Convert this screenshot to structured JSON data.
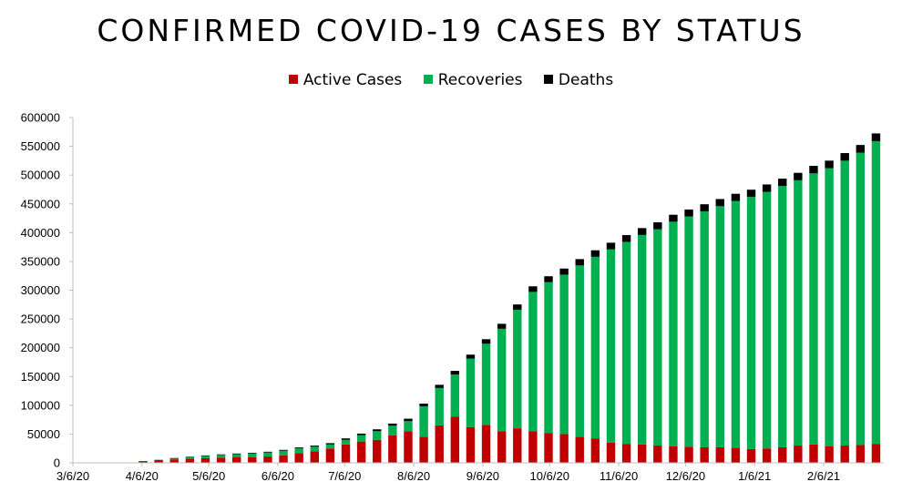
{
  "chart_data": {
    "type": "bar",
    "stacked": true,
    "title": "CONFIRMED COVID-19 CASES BY STATUS",
    "xlabel": "",
    "ylabel": "",
    "ylim": [
      0,
      600000
    ],
    "yticks": [
      "0",
      "50000",
      "100000",
      "150000",
      "200000",
      "250000",
      "300000",
      "350000",
      "400000",
      "450000",
      "500000",
      "550000",
      "600000"
    ],
    "xticks": [
      "3/6/20",
      "4/6/20",
      "5/6/20",
      "6/6/20",
      "7/6/20",
      "8/6/20",
      "9/6/20",
      "10/6/20",
      "11/6/20",
      "12/6/20",
      "1/6/21",
      "2/6/21"
    ],
    "legend_position": "top-center",
    "grid": false,
    "colors": {
      "active": "#c00000",
      "recoveries": "#00b050",
      "deaths": "#000000"
    },
    "categories": [
      "3/6/20",
      "3/13/20",
      "3/20/20",
      "3/27/20",
      "4/3/20",
      "4/10/20",
      "4/17/20",
      "4/24/20",
      "5/1/20",
      "5/8/20",
      "5/15/20",
      "5/22/20",
      "5/29/20",
      "6/5/20",
      "6/12/20",
      "6/19/20",
      "6/26/20",
      "7/3/20",
      "7/10/20",
      "7/17/20",
      "7/24/20",
      "7/31/20",
      "8/7/20",
      "8/14/20",
      "8/21/20",
      "8/28/20",
      "9/4/20",
      "9/11/20",
      "9/18/20",
      "9/25/20",
      "10/2/20",
      "10/9/20",
      "10/16/20",
      "10/23/20",
      "10/30/20",
      "11/6/20",
      "11/13/20",
      "11/20/20",
      "11/27/20",
      "12/4/20",
      "12/11/20",
      "12/18/20",
      "12/25/20",
      "1/1/21",
      "1/8/21",
      "1/15/21",
      "1/22/21",
      "1/29/21",
      "2/5/21",
      "2/12/21",
      "2/19/21",
      "2/26/21"
    ],
    "series": [
      {
        "name": "Active Cases",
        "values": [
          0,
          0,
          0,
          0,
          2500,
          4000,
          6000,
          7000,
          8000,
          9000,
          9500,
          10000,
          11000,
          13000,
          17000,
          20000,
          25000,
          32000,
          37000,
          40000,
          48000,
          55000,
          45000,
          65000,
          80000,
          62000,
          66000,
          55000,
          60000,
          55000,
          52000,
          50000,
          45000,
          42000,
          35000,
          33000,
          32000,
          30000,
          29000,
          28000,
          27000,
          27000,
          26000,
          24000,
          25000,
          27000,
          30000,
          32000,
          29000,
          30000,
          31000,
          33000
        ]
      },
      {
        "name": "Recoveries",
        "values": [
          0,
          0,
          0,
          0,
          200,
          800,
          1800,
          3000,
          4000,
          4700,
          5600,
          6300,
          7000,
          8000,
          8000,
          8000,
          7000,
          8000,
          11000,
          15000,
          16500,
          17500,
          53000,
          65000,
          73500,
          119000,
          141000,
          178000,
          206000,
          242000,
          262000,
          277000,
          298000,
          316000,
          336000,
          351000,
          364000,
          376000,
          390000,
          400000,
          410000,
          419000,
          429000,
          438000,
          446000,
          454000,
          461000,
          471000,
          483000,
          495000,
          508000,
          526000
        ]
      },
      {
        "name": "Deaths",
        "values": [
          0,
          0,
          0,
          0,
          100,
          300,
          500,
          700,
          900,
          1000,
          1100,
          1200,
          1300,
          1500,
          1700,
          1900,
          2200,
          2500,
          2800,
          3200,
          3700,
          4200,
          4900,
          5600,
          6300,
          7000,
          7800,
          8600,
          9200,
          9700,
          10200,
          10600,
          11000,
          11300,
          11500,
          11700,
          11900,
          12000,
          12100,
          12200,
          12300,
          12400,
          12500,
          12600,
          12700,
          12800,
          12900,
          13000,
          13100,
          13200,
          13300,
          13400
        ]
      }
    ]
  }
}
